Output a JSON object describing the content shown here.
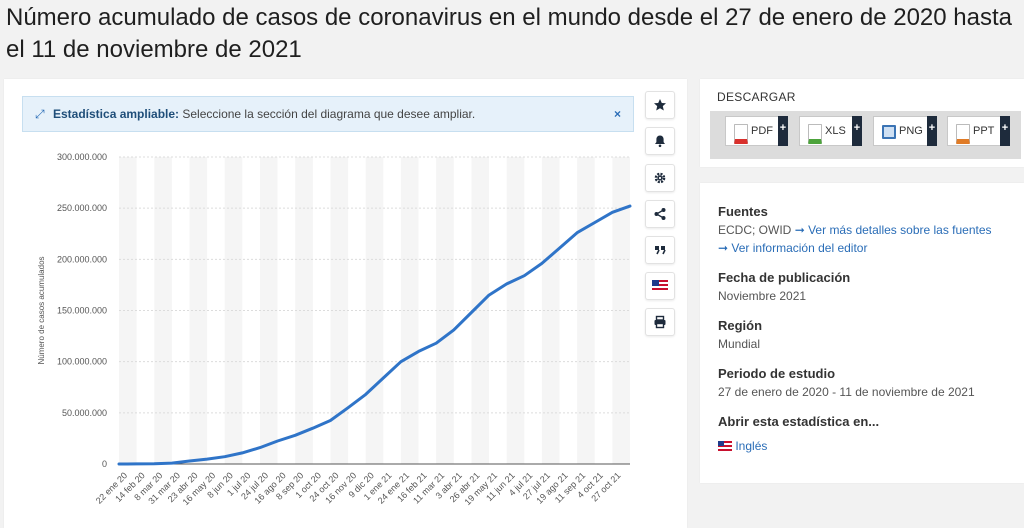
{
  "page_title": "Número acumulado de casos de coronavirus en el mundo desde el 27 de enero de 2020 hasta el 11 de noviembre de 2021",
  "zoom_banner": {
    "bold": "Estadística ampliable:",
    "text": " Seleccione la sección del diagrama que desee ampliar.",
    "close": "×"
  },
  "side_toolbar": [
    "star-icon",
    "bell-icon",
    "gear-icon",
    "share-icon",
    "quote-icon",
    "flag-icon",
    "print-icon"
  ],
  "download": {
    "title": "DESCARGAR",
    "buttons": [
      {
        "label": "PDF",
        "color": "#d9302c",
        "plus": "+"
      },
      {
        "label": "XLS",
        "color": "#4ca33b",
        "plus": "+"
      },
      {
        "label": "PNG",
        "color": "#3b74b5",
        "plus": "+"
      },
      {
        "label": "PPT",
        "color": "#e07b26",
        "plus": "+"
      }
    ]
  },
  "info": {
    "sources_head": "Fuentes",
    "sources_text": "ECDC; OWID",
    "sources_arrow": "➞",
    "sources_link": "Ver más detalles sobre las fuentes",
    "editor_arrow": "➞",
    "editor_link": "Ver información del editor",
    "pub_head": "Fecha de publicación",
    "pub_val": "Noviembre 2021",
    "region_head": "Región",
    "region_val": "Mundial",
    "period_head": "Periodo de estudio",
    "period_val": "27 de enero de 2020 - 11 de noviembre de 2021",
    "open_head": "Abrir esta estadística en...",
    "open_link": "Inglés"
  },
  "chart_data": {
    "type": "line",
    "title": "",
    "xlabel": "",
    "ylabel": "Número de casos acumulados",
    "ylim": [
      0,
      300000000
    ],
    "yticks": [
      0,
      50000000,
      100000000,
      150000000,
      200000000,
      250000000,
      300000000
    ],
    "ytick_labels": [
      "0",
      "50.000.000",
      "100.000.000",
      "150.000.000",
      "200.000.000",
      "250.000.000",
      "300.000.000"
    ],
    "categories": [
      "22 ene 20",
      "14 feb 20",
      "8 mar 20",
      "31 mar 20",
      "23 abr 20",
      "16 may 20",
      "8 jun 20",
      "1 jul 20",
      "24 jul 20",
      "16 ago 20",
      "8 sep 20",
      "1 oct 20",
      "24 oct 20",
      "16 nov 20",
      "9 dic 20",
      "1 ene 21",
      "24 ene 21",
      "16 feb 21",
      "11 mar 21",
      "3 abr 21",
      "26 abr 21",
      "19 may 21",
      "11 jun 21",
      "4 jul 21",
      "27 jul 21",
      "19 ago 21",
      "11 sep 21",
      "4 oct 21",
      "27 oct 21"
    ],
    "series": [
      {
        "color": "#2f74c8",
        "values": [
          0,
          50000,
          300000,
          900000,
          2900000,
          4800000,
          7100000,
          10800000,
          16000000,
          22500000,
          28000000,
          35000000,
          42500000,
          55000000,
          68000000,
          84000000,
          100000000,
          110000000,
          118000000,
          131000000,
          148000000,
          165000000,
          176000000,
          184000000,
          196000000,
          211000000,
          226000000,
          236000000,
          246000000
        ]
      }
    ],
    "last_value": 252000000,
    "grid": true,
    "legend": "none"
  }
}
